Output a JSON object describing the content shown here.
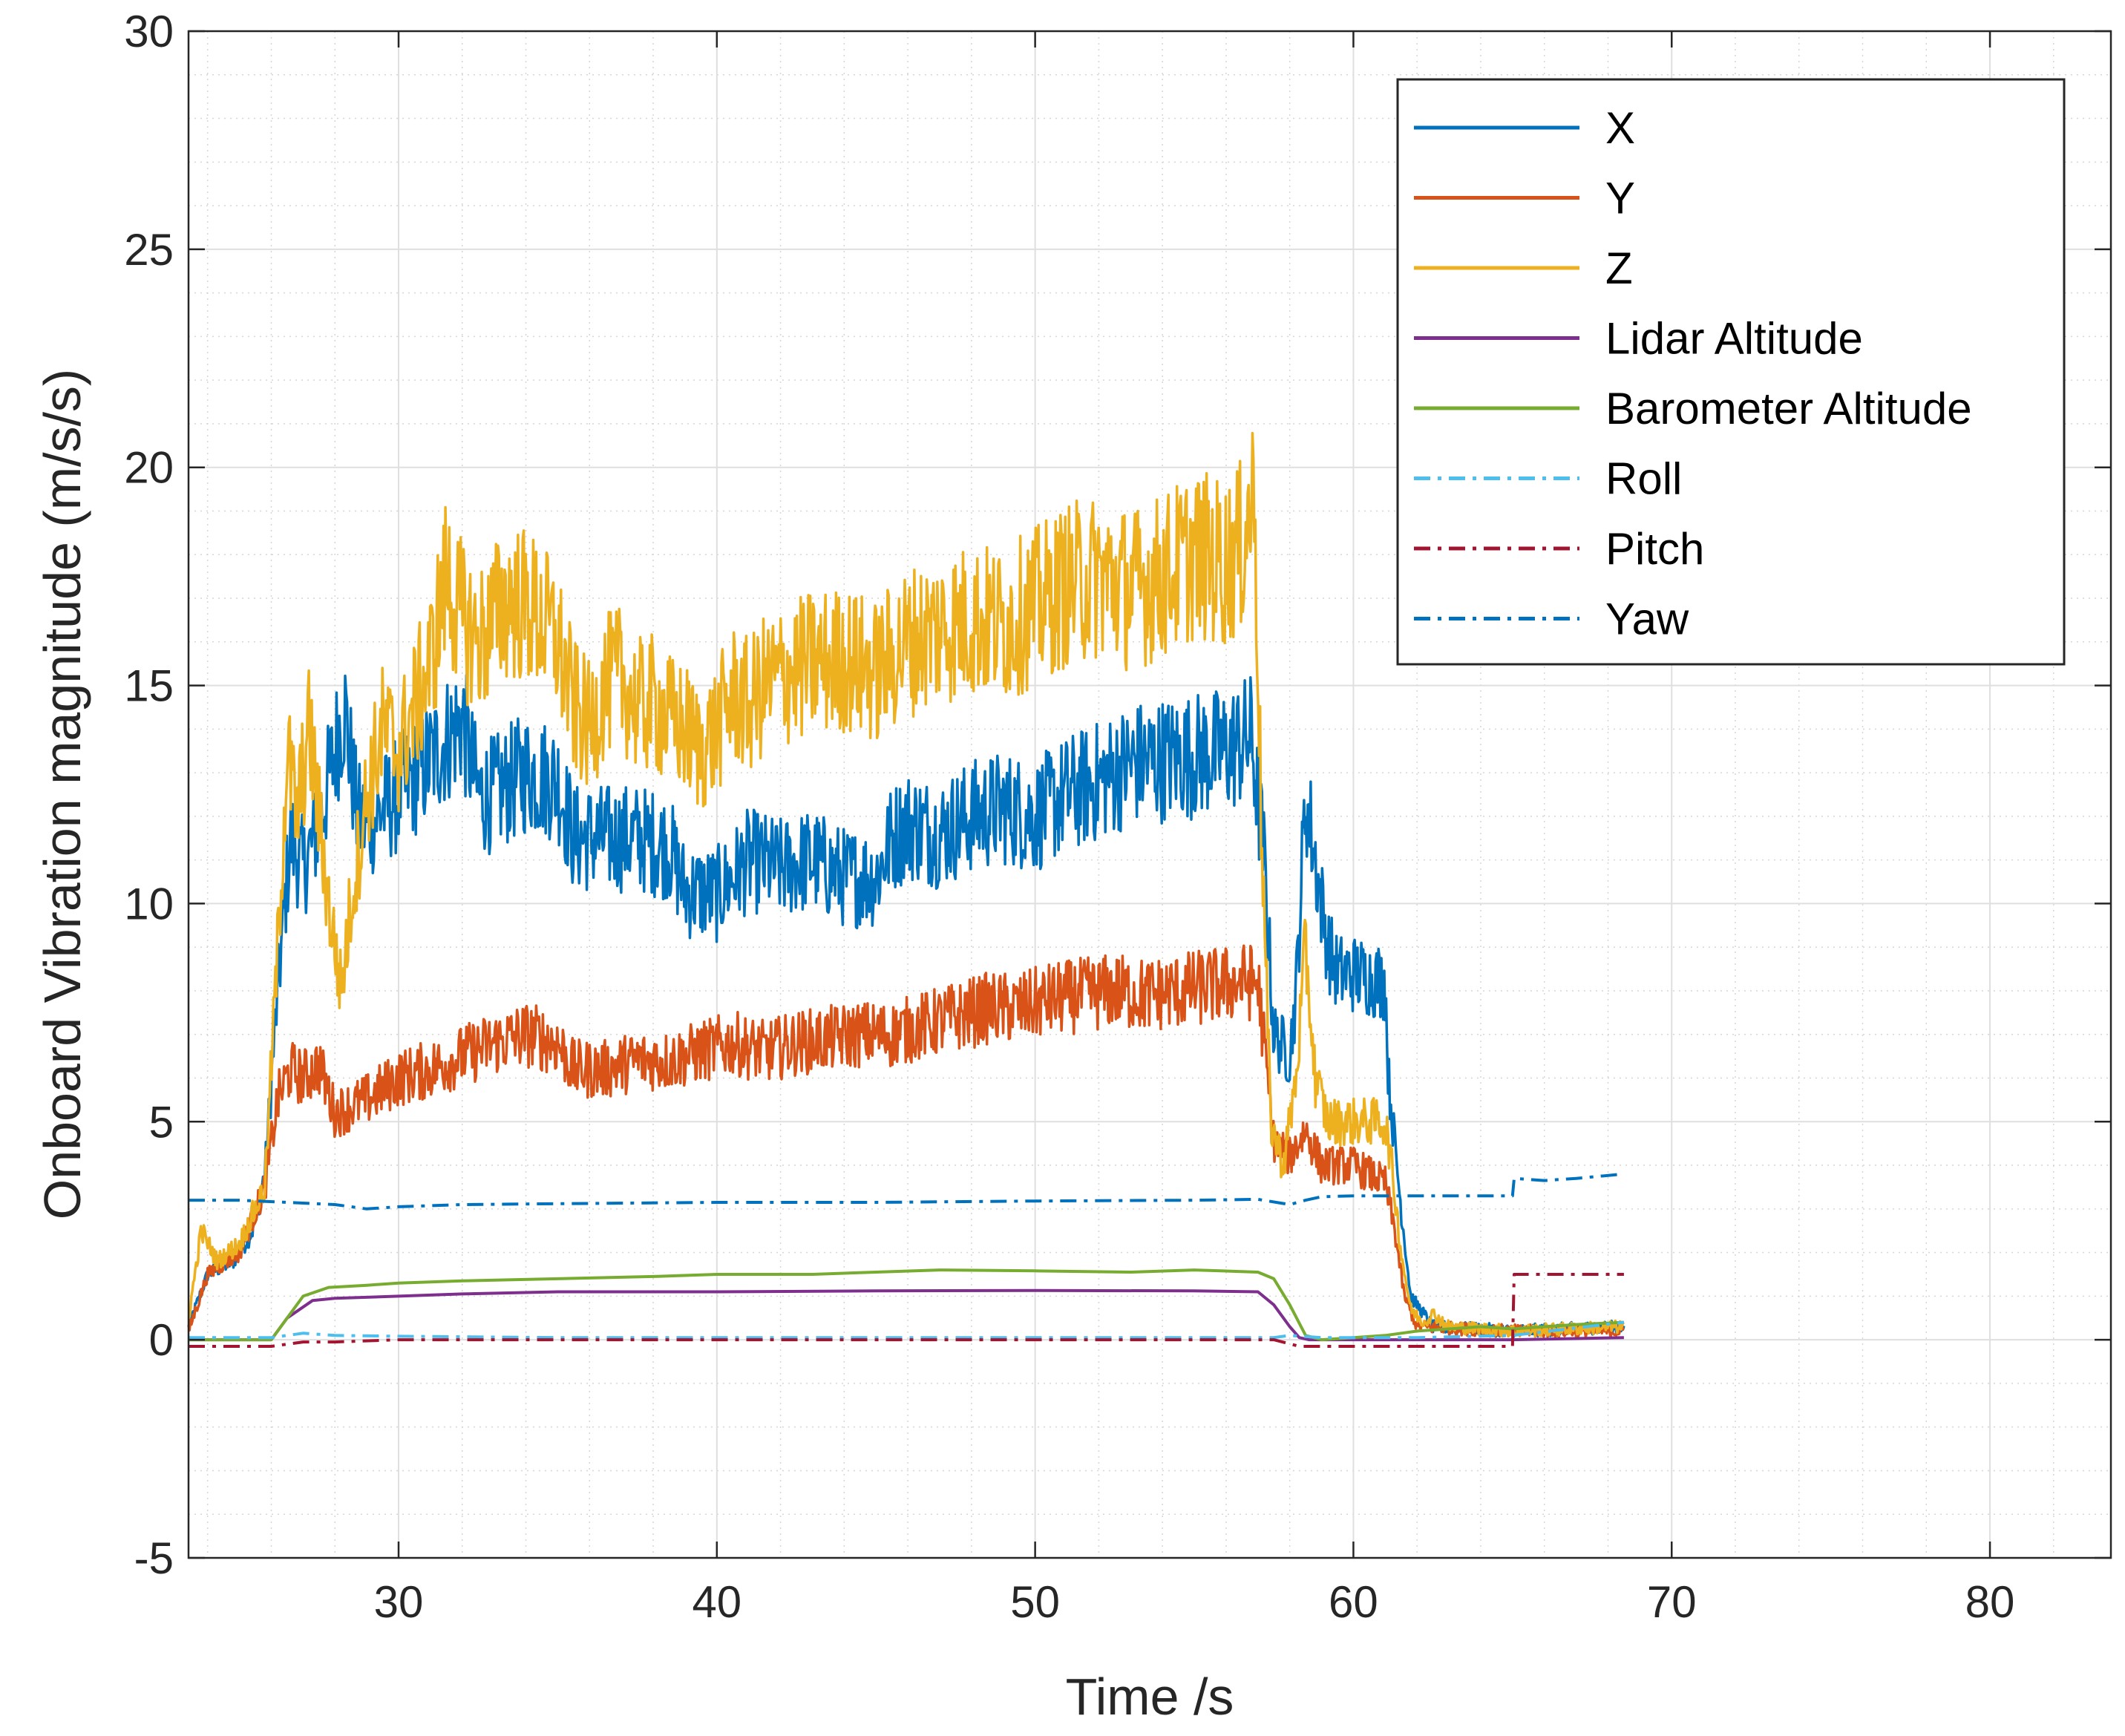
{
  "chart_data": {
    "type": "line",
    "title": "",
    "xlabel": "Time /s",
    "ylabel": "Onboard Vibration magnitude (m/s/s)",
    "xlim": [
      23.4,
      83.8
    ],
    "ylim": [
      -5,
      30
    ],
    "xticks": [
      30,
      40,
      50,
      60,
      70,
      80
    ],
    "yticks": [
      -5,
      0,
      5,
      10,
      15,
      20,
      25,
      30
    ],
    "xtick_labels": [
      "30",
      "40",
      "50",
      "60",
      "70",
      "80"
    ],
    "ytick_labels": [
      "-5",
      "0",
      "5",
      "10",
      "15",
      "20",
      "25",
      "30"
    ],
    "grid": true,
    "minor_grid": true,
    "legend_position": "top-right",
    "series": [
      {
        "name": "X",
        "color": "#0072BD",
        "style": "solid",
        "noisy": true,
        "points": [
          [
            23.4,
            0.3
          ],
          [
            24.0,
            1.5
          ],
          [
            24.8,
            1.8
          ],
          [
            25.4,
            2.5
          ],
          [
            25.8,
            3.8
          ],
          [
            26.2,
            8
          ],
          [
            26.6,
            11.5
          ],
          [
            27.0,
            10.8
          ],
          [
            27.5,
            11.8
          ],
          [
            28.0,
            13.5
          ],
          [
            28.3,
            14.5
          ],
          [
            28.7,
            12
          ],
          [
            29.0,
            11.8
          ],
          [
            30.0,
            12.5
          ],
          [
            31.0,
            13.3
          ],
          [
            32.0,
            14.2
          ],
          [
            32.5,
            12.5
          ],
          [
            33.0,
            12.5
          ],
          [
            34.0,
            13
          ],
          [
            35.0,
            12.8
          ],
          [
            35.5,
            11.5
          ],
          [
            36.5,
            11.5
          ],
          [
            37.5,
            11.5
          ],
          [
            38.5,
            11.3
          ],
          [
            39.0,
            10.3
          ],
          [
            40.0,
            10.2
          ],
          [
            41.0,
            11
          ],
          [
            42.0,
            10.8
          ],
          [
            43.0,
            11
          ],
          [
            44.0,
            10.6
          ],
          [
            45.0,
            10.6
          ],
          [
            45.5,
            11.5
          ],
          [
            46.0,
            11.8
          ],
          [
            47.0,
            11.6
          ],
          [
            48.0,
            12
          ],
          [
            49.0,
            12.2
          ],
          [
            50.0,
            12
          ],
          [
            51.0,
            12.5
          ],
          [
            52.0,
            12.8
          ],
          [
            53.0,
            13.2
          ],
          [
            54.0,
            13.3
          ],
          [
            55.0,
            13.4
          ],
          [
            56.0,
            13.5
          ],
          [
            56.8,
            13.8
          ],
          [
            57.2,
            11
          ],
          [
            57.5,
            7
          ],
          [
            58.0,
            6.5
          ],
          [
            58.2,
            8
          ],
          [
            58.5,
            12.5
          ],
          [
            58.8,
            11
          ],
          [
            59.2,
            9
          ],
          [
            59.5,
            8.4
          ],
          [
            60.0,
            8.4
          ],
          [
            61.0,
            8.2
          ],
          [
            61.1,
            6
          ],
          [
            61.5,
            3
          ],
          [
            61.8,
            1
          ],
          [
            62.5,
            0.3
          ],
          [
            65.0,
            0.2
          ],
          [
            68.5,
            0.3
          ]
        ]
      },
      {
        "name": "Y",
        "color": "#D95319",
        "style": "solid",
        "noisy": true,
        "points": [
          [
            23.4,
            0.2
          ],
          [
            24.0,
            1.5
          ],
          [
            25.0,
            2
          ],
          [
            25.8,
            3.5
          ],
          [
            26.2,
            5.5
          ],
          [
            26.6,
            6.2
          ],
          [
            27.0,
            6
          ],
          [
            27.5,
            6.3
          ],
          [
            28.0,
            5.2
          ],
          [
            29.0,
            5.5
          ],
          [
            30.0,
            6
          ],
          [
            31.0,
            6.2
          ],
          [
            32.0,
            6.5
          ],
          [
            33.0,
            6.8
          ],
          [
            34.0,
            7
          ],
          [
            35.0,
            6.8
          ],
          [
            35.5,
            6.2
          ],
          [
            36.5,
            6.2
          ],
          [
            37.5,
            6.4
          ],
          [
            38.5,
            6.4
          ],
          [
            39.5,
            6.6
          ],
          [
            40.5,
            6.8
          ],
          [
            41.5,
            6.6
          ],
          [
            42.5,
            6.8
          ],
          [
            43.5,
            6.9
          ],
          [
            44.5,
            7
          ],
          [
            45.5,
            7
          ],
          [
            46.5,
            7.2
          ],
          [
            47.5,
            7.4
          ],
          [
            48.5,
            7.6
          ],
          [
            49.5,
            7.6
          ],
          [
            50.5,
            7.8
          ],
          [
            51.5,
            7.9
          ],
          [
            52.5,
            8
          ],
          [
            53.5,
            7.9
          ],
          [
            54.5,
            8
          ],
          [
            55.5,
            8.1
          ],
          [
            56.5,
            8.2
          ],
          [
            57.0,
            8.2
          ],
          [
            57.3,
            6
          ],
          [
            57.5,
            4.5
          ],
          [
            58.0,
            4.2
          ],
          [
            58.5,
            4.8
          ],
          [
            59.0,
            4
          ],
          [
            60.0,
            4
          ],
          [
            61.0,
            3.6
          ],
          [
            61.3,
            2.5
          ],
          [
            61.6,
            1
          ],
          [
            62.0,
            0.3
          ],
          [
            65.0,
            0.2
          ],
          [
            68.5,
            0.2
          ]
        ]
      },
      {
        "name": "Z",
        "color": "#EDB120",
        "style": "solid",
        "noisy": true,
        "points": [
          [
            23.4,
            0.5
          ],
          [
            23.8,
            2.5
          ],
          [
            24.3,
            1.8
          ],
          [
            25.0,
            2.2
          ],
          [
            25.8,
            3.5
          ],
          [
            26.2,
            9
          ],
          [
            26.5,
            13.5
          ],
          [
            26.8,
            12
          ],
          [
            27.2,
            14
          ],
          [
            27.8,
            10
          ],
          [
            28.2,
            8
          ],
          [
            28.5,
            10
          ],
          [
            29.0,
            12.5
          ],
          [
            29.5,
            14
          ],
          [
            30.0,
            13.5
          ],
          [
            30.5,
            14.5
          ],
          [
            31.0,
            15.5
          ],
          [
            31.5,
            17.5
          ],
          [
            32.0,
            16.5
          ],
          [
            32.5,
            16
          ],
          [
            33.0,
            16.5
          ],
          [
            33.5,
            17
          ],
          [
            34.0,
            16.8
          ],
          [
            34.5,
            16.5
          ],
          [
            35.0,
            16
          ],
          [
            35.5,
            14.5
          ],
          [
            36.0,
            14
          ],
          [
            36.5,
            15
          ],
          [
            37.0,
            15.2
          ],
          [
            37.5,
            14.5
          ],
          [
            38.0,
            14.6
          ],
          [
            38.5,
            14.2
          ],
          [
            39.0,
            14
          ],
          [
            39.5,
            13.5
          ],
          [
            40.0,
            14
          ],
          [
            40.5,
            14.8
          ],
          [
            41.0,
            14.5
          ],
          [
            41.5,
            15
          ],
          [
            42.0,
            15.2
          ],
          [
            43.0,
            15.5
          ],
          [
            44.0,
            15.6
          ],
          [
            45.0,
            15.3
          ],
          [
            46.0,
            16
          ],
          [
            47.0,
            16.3
          ],
          [
            48.0,
            16.5
          ],
          [
            49.0,
            16.4
          ],
          [
            50.0,
            16.8
          ],
          [
            51.0,
            17.3
          ],
          [
            52.0,
            17.5
          ],
          [
            53.0,
            17.2
          ],
          [
            54.0,
            17.5
          ],
          [
            55.0,
            18
          ],
          [
            56.0,
            17.8
          ],
          [
            56.5,
            18.2
          ],
          [
            56.9,
            19.5
          ],
          [
            57.1,
            12
          ],
          [
            57.4,
            5
          ],
          [
            57.8,
            4
          ],
          [
            58.2,
            6
          ],
          [
            58.5,
            9
          ],
          [
            58.8,
            6
          ],
          [
            59.2,
            5
          ],
          [
            60.0,
            5
          ],
          [
            61.0,
            5
          ],
          [
            61.2,
            4
          ],
          [
            61.5,
            2
          ],
          [
            61.8,
            0.7
          ],
          [
            62.2,
            0.4
          ],
          [
            62.5,
            0.6
          ],
          [
            63.0,
            0.3
          ],
          [
            65.0,
            0.2
          ],
          [
            68.5,
            0.3
          ]
        ]
      },
      {
        "name": "Lidar Altitude",
        "color": "#7E2F8E",
        "style": "solid",
        "noisy": false,
        "points": [
          [
            23.4,
            0
          ],
          [
            26.0,
            0
          ],
          [
            26.5,
            0.5
          ],
          [
            27.3,
            0.9
          ],
          [
            28.0,
            0.95
          ],
          [
            30.0,
            1.0
          ],
          [
            32.0,
            1.05
          ],
          [
            35.0,
            1.1
          ],
          [
            40.0,
            1.1
          ],
          [
            45.0,
            1.12
          ],
          [
            50.0,
            1.13
          ],
          [
            55.0,
            1.12
          ],
          [
            57.0,
            1.1
          ],
          [
            57.5,
            0.8
          ],
          [
            58.0,
            0.3
          ],
          [
            58.3,
            0.05
          ],
          [
            58.6,
            0
          ],
          [
            62.0,
            0
          ],
          [
            65.0,
            0
          ],
          [
            68.5,
            0.05
          ]
        ]
      },
      {
        "name": "Barometer Altitude",
        "color": "#77AC30",
        "style": "solid",
        "noisy": false,
        "points": [
          [
            23.4,
            0
          ],
          [
            26.0,
            0
          ],
          [
            26.5,
            0.5
          ],
          [
            27.0,
            1.0
          ],
          [
            27.8,
            1.2
          ],
          [
            29.0,
            1.25
          ],
          [
            30.0,
            1.3
          ],
          [
            32.0,
            1.35
          ],
          [
            35.0,
            1.4
          ],
          [
            38.0,
            1.45
          ],
          [
            40.0,
            1.5
          ],
          [
            43.0,
            1.5
          ],
          [
            45.0,
            1.55
          ],
          [
            47.0,
            1.6
          ],
          [
            50.0,
            1.58
          ],
          [
            53.0,
            1.55
          ],
          [
            55.0,
            1.6
          ],
          [
            57.0,
            1.55
          ],
          [
            57.5,
            1.4
          ],
          [
            58.0,
            0.8
          ],
          [
            58.5,
            0.1
          ],
          [
            59.0,
            0
          ],
          [
            60.0,
            0.05
          ],
          [
            61.0,
            0.1
          ],
          [
            62.0,
            0.2
          ],
          [
            63.0,
            0.25
          ],
          [
            64.0,
            0.3
          ],
          [
            65.0,
            0.25
          ],
          [
            66.0,
            0.3
          ],
          [
            67.0,
            0.35
          ],
          [
            68.5,
            0.4
          ]
        ]
      },
      {
        "name": "Roll",
        "color": "#4DBEEE",
        "style": "dashdot",
        "noisy": false,
        "points": [
          [
            23.4,
            0.05
          ],
          [
            26.0,
            0.05
          ],
          [
            27.0,
            0.15
          ],
          [
            28.0,
            0.1
          ],
          [
            30.0,
            0.08
          ],
          [
            35.0,
            0.05
          ],
          [
            40.0,
            0.05
          ],
          [
            45.0,
            0.05
          ],
          [
            50.0,
            0.05
          ],
          [
            55.0,
            0.05
          ],
          [
            57.5,
            0.05
          ],
          [
            58.0,
            0.1
          ],
          [
            59.0,
            0.05
          ],
          [
            62.0,
            0.05
          ],
          [
            65.0,
            0.1
          ],
          [
            68.5,
            0.4
          ]
        ]
      },
      {
        "name": "Pitch",
        "color": "#A2142F",
        "style": "dashdot",
        "noisy": false,
        "points": [
          [
            23.4,
            -0.15
          ],
          [
            26.0,
            -0.15
          ],
          [
            27.0,
            -0.05
          ],
          [
            28.0,
            -0.05
          ],
          [
            30.0,
            0
          ],
          [
            35.0,
            0
          ],
          [
            40.0,
            0
          ],
          [
            45.0,
            0
          ],
          [
            50.0,
            0
          ],
          [
            55.0,
            0
          ],
          [
            57.5,
            0
          ],
          [
            58.3,
            -0.15
          ],
          [
            60.0,
            -0.15
          ],
          [
            62.0,
            -0.15
          ],
          [
            65.0,
            -0.15
          ],
          [
            65.05,
            1.5
          ],
          [
            68.5,
            1.5
          ]
        ]
      },
      {
        "name": "Yaw",
        "color": "#0072BD",
        "style": "dashdot",
        "noisy": false,
        "points": [
          [
            23.4,
            3.2
          ],
          [
            25.0,
            3.2
          ],
          [
            26.5,
            3.15
          ],
          [
            28.0,
            3.1
          ],
          [
            29.0,
            3.0
          ],
          [
            30.0,
            3.05
          ],
          [
            32.0,
            3.1
          ],
          [
            35.0,
            3.12
          ],
          [
            40.0,
            3.15
          ],
          [
            45.0,
            3.15
          ],
          [
            50.0,
            3.18
          ],
          [
            55.0,
            3.2
          ],
          [
            57.0,
            3.22
          ],
          [
            58.0,
            3.1
          ],
          [
            58.5,
            3.2
          ],
          [
            59.0,
            3.28
          ],
          [
            60.0,
            3.3
          ],
          [
            65.0,
            3.3
          ],
          [
            65.05,
            3.7
          ],
          [
            66.0,
            3.65
          ],
          [
            67.0,
            3.7
          ],
          [
            68.5,
            3.8
          ]
        ]
      }
    ]
  }
}
